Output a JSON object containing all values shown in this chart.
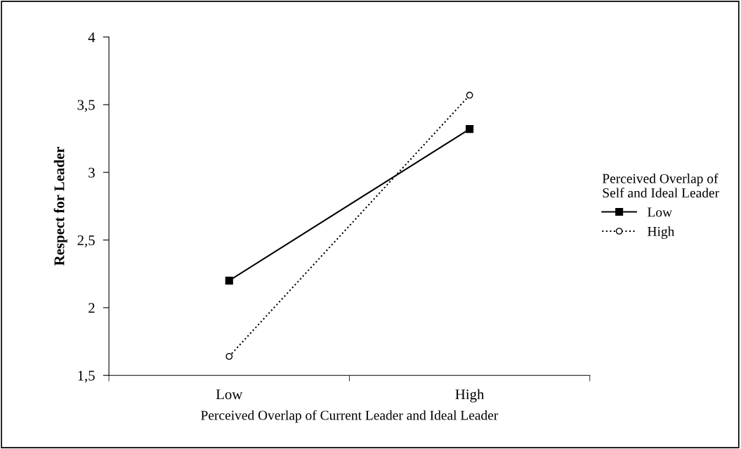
{
  "chart_data": {
    "type": "line",
    "xlabel": "Perceived Overlap of Current Leader and Ideal Leader",
    "ylabel": "Respect for Leader",
    "legend_title": "Perceived Overlap of\nSelf and Ideal Leader",
    "categories": [
      "Low",
      "High"
    ],
    "series": [
      {
        "name": "Low",
        "color": "#000000",
        "values": [
          2.2,
          3.32
        ],
        "marker": "square",
        "line_style": "solid"
      },
      {
        "name": "High",
        "color": "#000000",
        "values": [
          1.64,
          3.57
        ],
        "marker": "circle",
        "line_style": "dotted"
      }
    ],
    "ylim": [
      1.5,
      4
    ],
    "yticks": [
      {
        "value": 1.5,
        "label": "1,5"
      },
      2,
      {
        "value": 2.5,
        "label": "2,5"
      },
      3,
      {
        "value": 3.5,
        "label": "3,5"
      },
      4
    ],
    "grid": false,
    "legend": "right"
  }
}
